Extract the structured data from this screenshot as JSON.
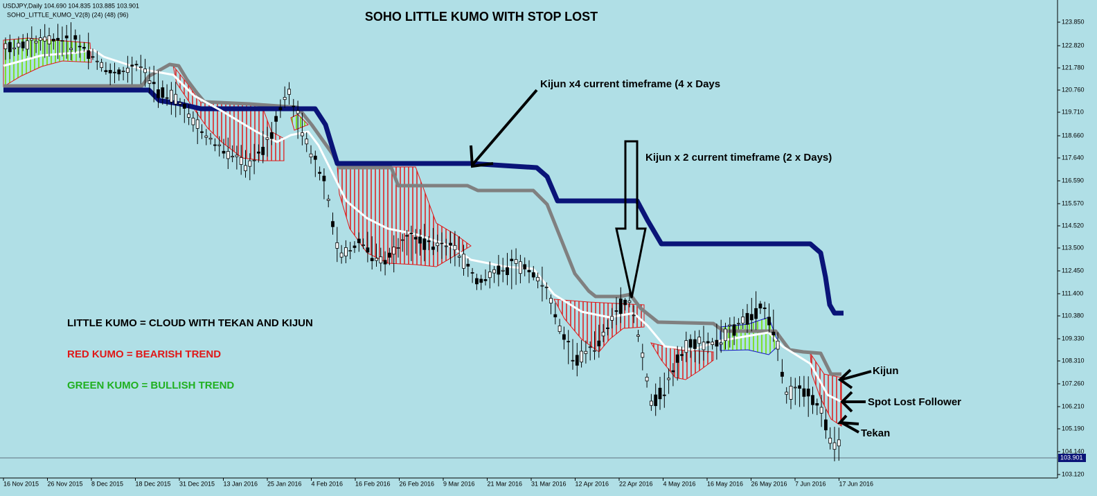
{
  "header": {
    "symbol_line": "USDJPY,Daily  104.690 104.835 103.885 103.901",
    "indicator_line": "SOHO_LITTLE_KUMO_V2(8) (24) (48) (96)"
  },
  "title": "SOHO LITTLE KUMO WITH STOP LOST",
  "annotations": [
    "Kijun x4 current timeframe (4 x Days",
    "Kijun x 2 current timeframe (2 x Days)",
    "LITTLE KUMO = CLOUD WITH TEKAN AND KIJUN",
    "RED KUMO = BEARISH TREND",
    "GREEN KUMO = BULLISH TREND",
    "Kijun",
    "Spot Lost Follower",
    "Tekan"
  ],
  "price_axis": {
    "labels": [
      "123.850",
      "122.820",
      "121.780",
      "120.760",
      "119.710",
      "118.660",
      "117.640",
      "116.590",
      "115.570",
      "114.520",
      "113.500",
      "112.450",
      "111.400",
      "110.380",
      "109.330",
      "108.310",
      "107.260",
      "106.210",
      "105.190",
      "104.140",
      "103.120"
    ],
    "current": "103.901"
  },
  "time_axis": {
    "labels": [
      "16 Nov 2015",
      "26 Nov 2015",
      "8 Dec 2015",
      "18 Dec 2015",
      "31 Dec 2015",
      "13 Jan 2016",
      "25 Jan 2016",
      "4 Feb 2016",
      "16 Feb 2016",
      "26 Feb 2016",
      "9 Mar 2016",
      "21 Mar 2016",
      "31 Mar 2016",
      "12 Apr 2016",
      "22 Apr 2016",
      "4 May 2016",
      "16 May 2016",
      "26 May 2016",
      "7 Jun 2016",
      "17 Jun 2016"
    ]
  }
}
